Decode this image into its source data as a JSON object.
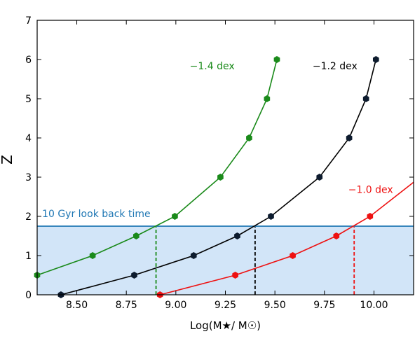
{
  "chart_data": {
    "type": "line",
    "xlabel": "Log(M★/ M☉)",
    "ylabel": "Z",
    "xlim": [
      8.3,
      10.2
    ],
    "ylim": [
      0,
      7
    ],
    "xticks": [
      8.5,
      8.75,
      9.0,
      9.25,
      9.5,
      9.75,
      10.0
    ],
    "xtick_labels": [
      "8.50",
      "8.75",
      "9.00",
      "9.25",
      "9.50",
      "9.75",
      "10.00"
    ],
    "yticks": [
      0,
      1,
      2,
      3,
      4,
      5,
      6,
      7
    ],
    "ytick_labels": [
      "0",
      "1",
      "2",
      "3",
      "4",
      "5",
      "6",
      "7"
    ],
    "grid": false,
    "series": [
      {
        "name": "−1.4 dex",
        "color": "#1a8a1a",
        "line_x": [
          8.3,
          8.58,
          8.8,
          8.995,
          9.225,
          9.37,
          9.46,
          9.51
        ],
        "line_y": [
          0.5,
          1.0,
          1.5,
          2.0,
          3.0,
          4.0,
          5.0,
          6.0
        ],
        "marker_x": [
          8.3,
          8.58,
          8.8,
          8.995,
          9.225,
          9.37,
          9.46,
          9.51
        ],
        "marker_y": [
          0.5,
          1.0,
          1.5,
          2.0,
          3.0,
          4.0,
          5.0,
          6.0
        ],
        "label_x": 9.07,
        "label_y": 5.75
      },
      {
        "name": "−1.2 dex",
        "color": "#000000",
        "marker_color": "#0d1b2e",
        "line_x": [
          8.42,
          8.79,
          9.09,
          9.31,
          9.48,
          9.725,
          9.875,
          9.96,
          10.01
        ],
        "line_y": [
          0.0,
          0.5,
          1.0,
          1.5,
          2.0,
          3.0,
          4.0,
          5.0,
          6.0
        ],
        "marker_x": [
          8.42,
          8.79,
          9.09,
          9.31,
          9.48,
          9.725,
          9.875,
          9.96,
          10.01
        ],
        "marker_y": [
          0.0,
          0.5,
          1.0,
          1.5,
          2.0,
          3.0,
          4.0,
          5.0,
          6.0
        ],
        "label_x": 9.69,
        "label_y": 5.75
      },
      {
        "name": "−1.0 dex",
        "color": "#ee1111",
        "line_x": [
          8.92,
          9.3,
          9.59,
          9.81,
          9.98,
          10.2
        ],
        "line_y": [
          0.0,
          0.5,
          1.0,
          1.5,
          2.0,
          2.87
        ],
        "marker_x": [
          8.92,
          9.3,
          9.59,
          9.81,
          9.98
        ],
        "marker_y": [
          0.0,
          0.5,
          1.0,
          1.5,
          2.0
        ],
        "label_x": 9.87,
        "label_y": 2.6
      }
    ],
    "threshold": {
      "label": "10 Gyr look back time",
      "y": 1.75,
      "color": "#1f77b4",
      "fill": "#d2e5f8",
      "label_x": 8.325,
      "label_y": 1.98
    },
    "vlines": [
      {
        "x": 8.9,
        "color": "#1a8a1a"
      },
      {
        "x": 9.4,
        "color": "#000000"
      },
      {
        "x": 9.9,
        "color": "#ee1111"
      }
    ]
  }
}
